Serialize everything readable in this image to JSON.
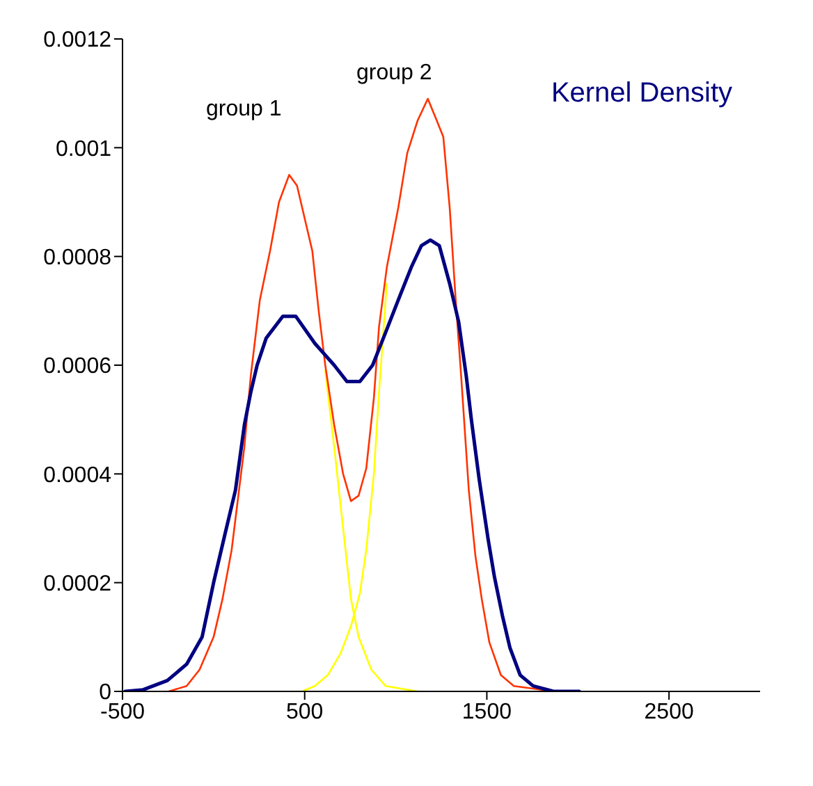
{
  "chart_data": {
    "type": "line",
    "xlim": [
      -500,
      3000
    ],
    "xticks": [
      -500,
      500,
      1500,
      2500
    ],
    "ylim": [
      0,
      0.0012
    ],
    "yticks": [
      0,
      0.0002,
      0.0004,
      0.0006,
      0.0008,
      0.001,
      0.0012
    ],
    "grid": false,
    "legend": "top right",
    "marker": "none",
    "annotations": [
      "group 1",
      "group 2"
    ],
    "series": [
      {
        "color": "#ffff00",
        "x": [
          613,
          662,
          711,
          754,
          796,
          866,
          944,
          1120
        ],
        "values": [
          0.00059,
          0.00045,
          0.0003,
          0.00017,
          0.0001,
          4e-05,
          1e-05,
          0
        ]
      },
      {
        "color": "#ffff00",
        "x": [
          486,
          556,
          627,
          697,
          754,
          803,
          838,
          880,
          908,
          951
        ],
        "values": [
          0,
          1e-05,
          3e-05,
          7e-05,
          0.00012,
          0.00018,
          0.00026,
          0.0004,
          0.00055,
          0.00075
        ]
      },
      {
        "color": "#ff3300",
        "x": [
          -246,
          -148,
          -77,
          0,
          49,
          99,
          169,
          204,
          254,
          310,
          359,
          415,
          458,
          507,
          542,
          577,
          613,
          662,
          711,
          754,
          796,
          838,
          880,
          908,
          951,
          1014,
          1063,
          1120,
          1176,
          1225,
          1261,
          1296,
          1331,
          1359,
          1401,
          1437,
          1472,
          1514,
          1577,
          1648,
          1866
        ],
        "values": [
          0,
          1e-05,
          4e-05,
          0.0001,
          0.00017,
          0.00026,
          0.00045,
          0.00058,
          0.00072,
          0.00081,
          0.0009,
          0.00095,
          0.00093,
          0.00086,
          0.00081,
          0.0007,
          0.0006,
          0.00049,
          0.0004,
          0.00035,
          0.00036,
          0.00041,
          0.00054,
          0.00067,
          0.00078,
          0.00089,
          0.00099,
          0.00105,
          0.00109,
          0.00105,
          0.00102,
          0.00089,
          0.00071,
          0.00058,
          0.00037,
          0.00025,
          0.00017,
          9e-05,
          3e-05,
          1e-05,
          0
        ]
      },
      {
        "name": "Kernel Density",
        "color": "#000080",
        "x": [
          -486,
          -387,
          -254,
          -148,
          -63,
          0,
          63,
          120,
          169,
          204,
          239,
          289,
          380,
          451,
          556,
          662,
          732,
          803,
          873,
          944,
          1014,
          1085,
          1141,
          1190,
          1239,
          1296,
          1345,
          1387,
          1415,
          1458,
          1507,
          1542,
          1585,
          1627,
          1683,
          1754,
          1866,
          2007
        ],
        "values": [
          0,
          3e-06,
          2e-05,
          5e-05,
          0.0001,
          0.0002,
          0.00029,
          0.00037,
          0.00049,
          0.00055,
          0.0006,
          0.00065,
          0.00069,
          0.00069,
          0.00064,
          0.0006,
          0.00057,
          0.00057,
          0.0006,
          0.00066,
          0.00072,
          0.00078,
          0.00082,
          0.00083,
          0.00082,
          0.00075,
          0.00068,
          0.00058,
          0.0005,
          0.00039,
          0.00028,
          0.00021,
          0.00014,
          8e-05,
          3e-05,
          1e-05,
          0,
          0
        ]
      }
    ]
  }
}
